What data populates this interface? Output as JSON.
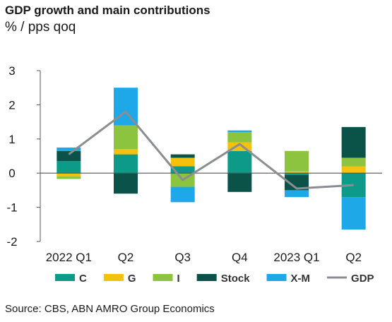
{
  "chart_data": {
    "type": "bar",
    "title": "GDP growth and main contributions",
    "subtitle": "% / pps qoq",
    "categories": [
      "2022 Q1",
      "Q2",
      "Q3",
      "Q4",
      "2023 Q1",
      "Q2"
    ],
    "ylim": [
      -2,
      3
    ],
    "yticks": [
      -2,
      -1,
      0,
      1,
      2,
      3
    ],
    "grid": false,
    "legend_position": "bottom",
    "series": [
      {
        "name": "C",
        "type": "bar",
        "color": "#0e9a89",
        "values": [
          0.35,
          0.55,
          0.2,
          0.65,
          -0.05,
          -0.7
        ]
      },
      {
        "name": "G",
        "type": "bar",
        "color": "#f4c20d",
        "values": [
          -0.1,
          0.15,
          0.25,
          0.25,
          0.05,
          0.2
        ]
      },
      {
        "name": "I",
        "type": "bar",
        "color": "#8cc43f",
        "values": [
          -0.07,
          0.7,
          -0.4,
          0.3,
          0.6,
          0.25
        ]
      },
      {
        "name": "Stock",
        "type": "bar",
        "color": "#0b5249",
        "values": [
          0.3,
          -0.6,
          0.1,
          -0.55,
          -0.45,
          0.9
        ]
      },
      {
        "name": "X-M",
        "type": "bar",
        "color": "#1ea8e8",
        "values": [
          0.1,
          1.1,
          -0.45,
          0.05,
          -0.2,
          -0.95
        ]
      },
      {
        "name": "GDP",
        "type": "line",
        "color": "#8a8d91",
        "values": [
          0.55,
          1.8,
          -0.2,
          0.85,
          -0.45,
          -0.35
        ]
      }
    ]
  },
  "source": "Source: CBS, ABN AMRO Group Economics"
}
